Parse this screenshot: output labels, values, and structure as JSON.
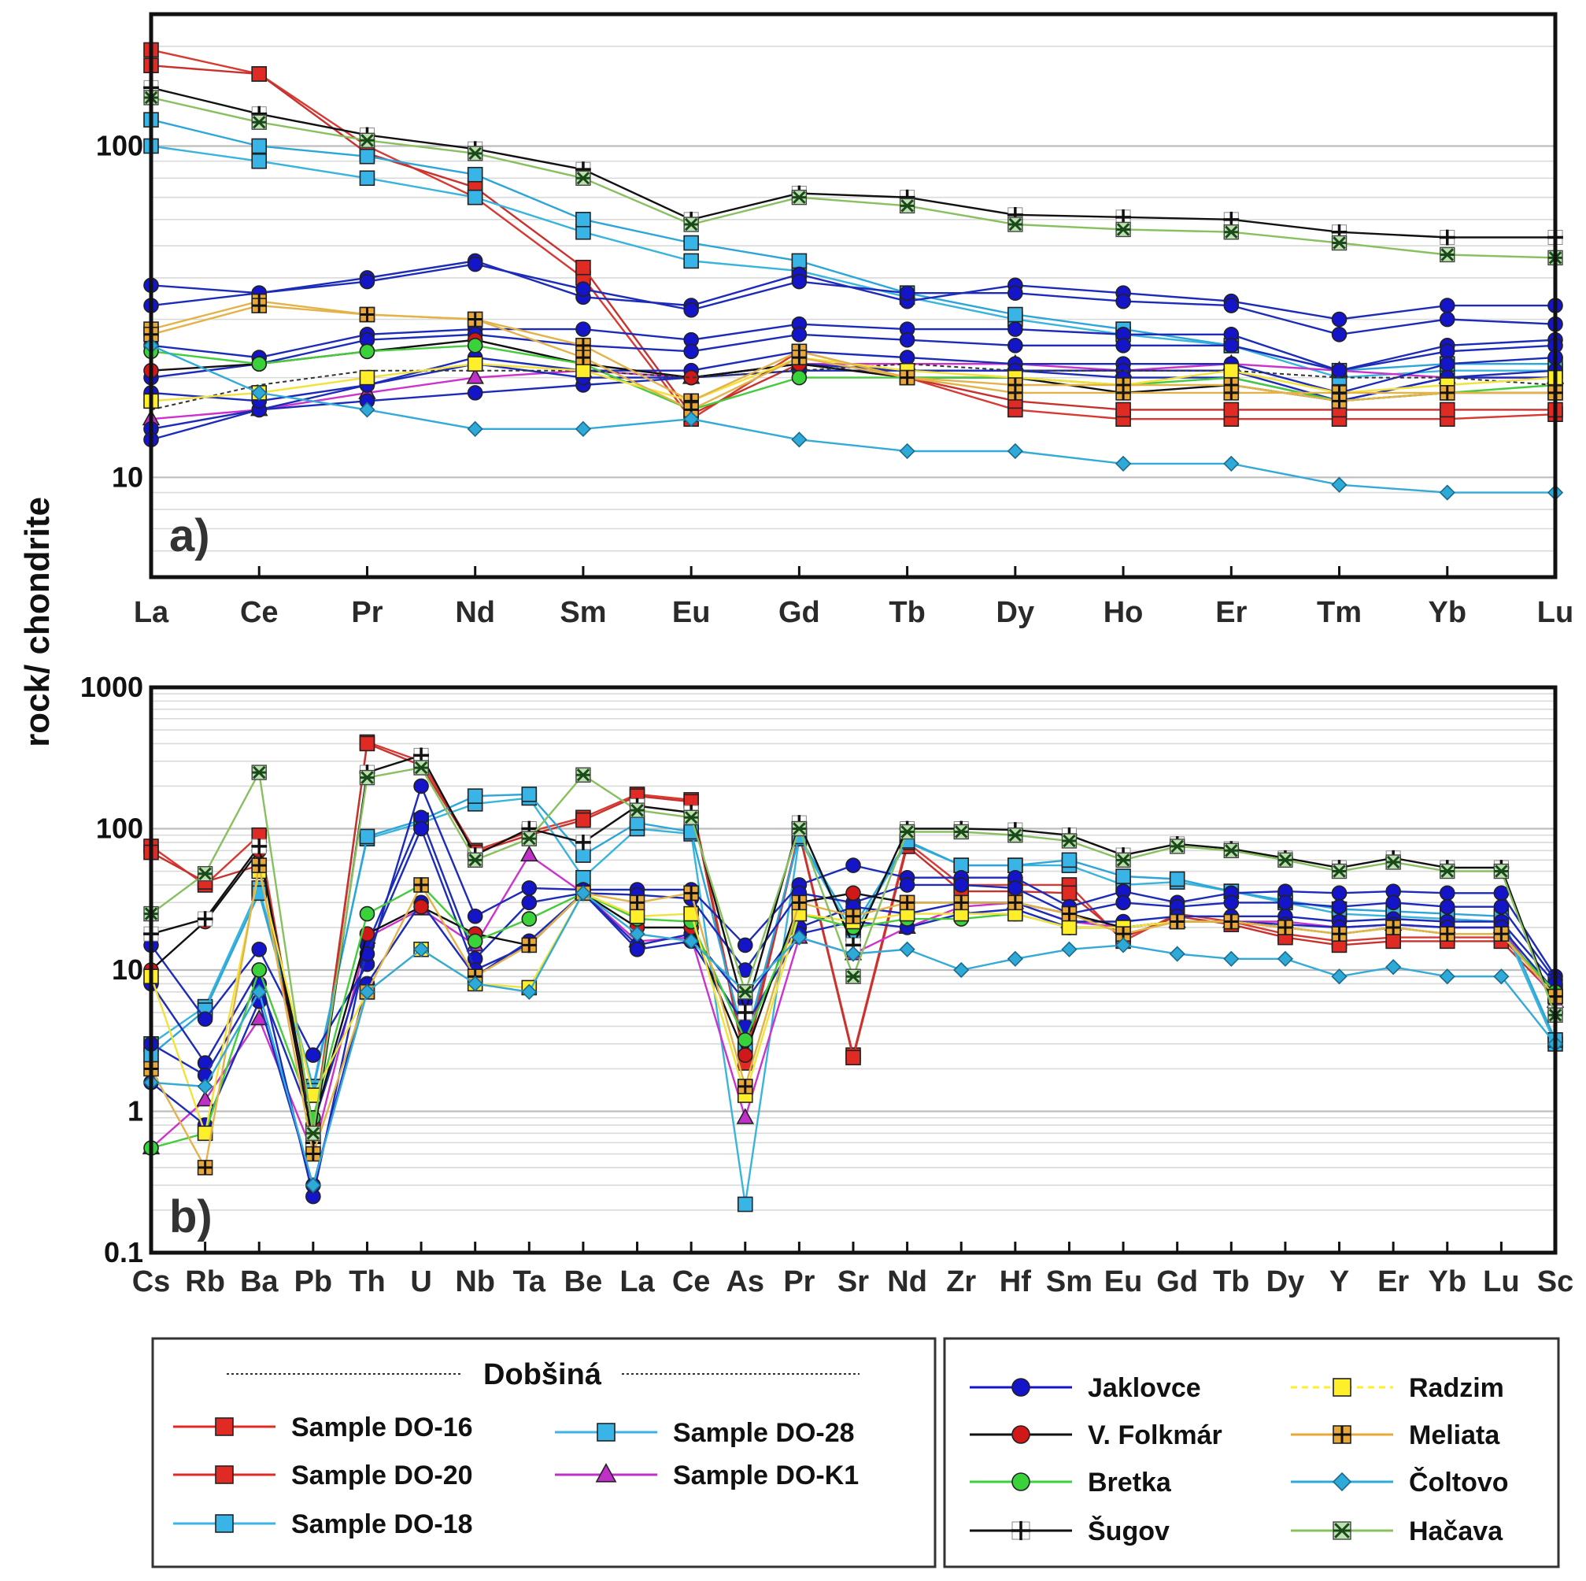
{
  "y_axis_label": "rock/ chondrite",
  "colors": {
    "Sample DO-16": "#d63a33",
    "Sample DO-20": "#c8322e",
    "Sample DO-18": "#39b4dc",
    "Sample DO-28": "#2ca6d8",
    "Sample DO-K1": "#cc33cc",
    "Jaklovce": "#1c2bb8",
    "V. Folkmár": "#111111",
    "Bretka": "#44cc3c",
    "Šugov": "#111111",
    "Radzim": "#f2e23a",
    "Meliata": "#e3b34a",
    "Čoltovo": "#33aad8",
    "Hačava": "#88c060"
  },
  "legend": {
    "group_title": "Dobšiná",
    "left": [
      {
        "label": "Sample DO-16",
        "marker": "square",
        "color": "#e02b25"
      },
      {
        "label": "Sample DO-20",
        "marker": "square",
        "color": "#e02b25"
      },
      {
        "label": "Sample DO-18",
        "marker": "square",
        "color": "#39b4e6"
      },
      {
        "label": "Sample DO-28",
        "marker": "square",
        "color": "#39b4e6"
      },
      {
        "label": "Sample DO-K1",
        "marker": "triangle",
        "color": "#c030c8"
      }
    ],
    "right": [
      {
        "label": "Jaklovce",
        "marker": "circle",
        "color": "#1414c8"
      },
      {
        "label": "V. Folkmár",
        "marker": "circle",
        "color": "#d01818"
      },
      {
        "label": "Bretka",
        "marker": "circle",
        "color": "#3ad23a"
      },
      {
        "label": "Šugov",
        "marker": "plus",
        "color": "#111111"
      },
      {
        "label": "Radzim",
        "marker": "square",
        "color": "#ffee2a"
      },
      {
        "label": "Meliata",
        "marker": "boxplus",
        "color": "#e8a838"
      },
      {
        "label": "Čoltovo",
        "marker": "diamond",
        "color": "#2eaad8"
      },
      {
        "label": "Hačava",
        "marker": "boxx",
        "color": "#2f8a2f"
      }
    ]
  },
  "chart_data": [
    {
      "type": "line",
      "panel": "a)",
      "yscale": "log",
      "ylim": [
        5,
        250
      ],
      "ytick_labels": [
        "10",
        "100"
      ],
      "categories": [
        "La",
        "Ce",
        "Pr",
        "Nd",
        "Sm",
        "Eu",
        "Gd",
        "Tb",
        "Dy",
        "Ho",
        "Er",
        "Tm",
        "Yb",
        "Lu"
      ],
      "series": [
        {
          "name": "Sample DO-16",
          "values": [
            195,
            165,
            100,
            70,
            40,
            15,
            24,
            20,
            16,
            15,
            15,
            15,
            15,
            15.5
          ]
        },
        {
          "name": "Sample DO-20",
          "values": [
            175,
            165,
            95,
            75,
            43,
            15.5,
            22,
            20,
            17,
            16,
            16,
            16,
            16,
            16
          ]
        },
        {
          "name": "Sample DO-18",
          "values": [
            100,
            90,
            80,
            70,
            55,
            45,
            42,
            35,
            30,
            27,
            25,
            20,
            21,
            21
          ]
        },
        {
          "name": "Sample DO-28",
          "values": [
            120,
            100,
            93,
            82,
            60,
            51,
            45,
            36,
            31,
            28,
            25,
            21,
            22,
            22
          ]
        },
        {
          "name": "Sample DO-K1",
          "values": [
            15,
            16,
            18,
            20,
            21,
            20,
            22,
            22,
            22,
            21,
            22,
            21,
            20,
            20
          ]
        },
        {
          "name": "Jaklovce",
          "values": [
            38,
            36,
            40,
            45,
            35,
            33,
            41,
            34,
            38,
            36,
            34,
            30,
            33,
            33
          ]
        },
        {
          "name": "Jaklovce",
          "values": [
            33,
            36,
            39,
            44,
            37,
            32,
            39,
            36,
            36,
            34,
            33,
            27,
            30,
            29
          ]
        },
        {
          "name": "Jaklovce",
          "values": [
            25,
            23,
            27,
            28,
            28,
            26,
            29,
            28,
            28,
            27,
            27,
            21,
            25,
            26
          ]
        },
        {
          "name": "Jaklovce",
          "values": [
            20,
            22,
            26,
            27,
            25,
            24,
            27,
            26,
            25,
            25,
            25,
            21,
            24,
            25
          ]
        },
        {
          "name": "Jaklovce",
          "values": [
            14,
            16,
            19,
            23,
            21,
            21,
            24,
            23,
            22,
            22,
            22,
            18,
            22,
            23
          ]
        },
        {
          "name": "Jaklovce",
          "values": [
            13,
            16,
            17,
            18,
            19,
            20,
            21,
            21,
            21,
            21,
            21,
            17,
            20,
            21
          ]
        },
        {
          "name": "Jaklovce",
          "values": [
            18,
            17,
            19,
            22,
            20,
            20,
            22,
            21,
            21,
            20,
            20,
            17,
            20,
            20
          ]
        },
        {
          "name": "V. Folkmár",
          "values": [
            21,
            22,
            24,
            26,
            22,
            20,
            22,
            20,
            20,
            18,
            19,
            17,
            18,
            18
          ]
        },
        {
          "name": "Bretka",
          "values": [
            24,
            22,
            24,
            25,
            22,
            16,
            20,
            20,
            20,
            19,
            20,
            17,
            18,
            19
          ]
        },
        {
          "name": "Šugov",
          "values": [
            150,
            125,
            108,
            98,
            85,
            60,
            72,
            70,
            62,
            61,
            60,
            55,
            53,
            53
          ]
        },
        {
          "name": "Dobšiná avg",
          "values": [
            16,
            19,
            21,
            21,
            21,
            20,
            21,
            22,
            21,
            21,
            21,
            20,
            20,
            19
          ]
        },
        {
          "name": "Radzim",
          "values": [
            17,
            18,
            20,
            22,
            21,
            17,
            23,
            21,
            20,
            19,
            21,
            18,
            19,
            20
          ]
        },
        {
          "name": "Meliata",
          "values": [
            28,
            34,
            31,
            30,
            25,
            17,
            24,
            20,
            18,
            18,
            18,
            18,
            18,
            18
          ]
        },
        {
          "name": "Meliata",
          "values": [
            27,
            33,
            31,
            30,
            23,
            16,
            23,
            20,
            19,
            19,
            19,
            17,
            18,
            18
          ]
        },
        {
          "name": "Čoltovo",
          "values": [
            25,
            18,
            16,
            14,
            14,
            15,
            13,
            12,
            12,
            11,
            11,
            9.5,
            9,
            9
          ]
        },
        {
          "name": "Hačava",
          "values": [
            140,
            118,
            104,
            95,
            80,
            58,
            70,
            66,
            58,
            56,
            55,
            51,
            47,
            46
          ]
        }
      ]
    },
    {
      "type": "line",
      "panel": "b)",
      "yscale": "log",
      "ylim": [
        0.1,
        1000
      ],
      "ytick_labels": [
        "0.1",
        "1",
        "10",
        "100",
        "1000"
      ],
      "categories": [
        "Cs",
        "Rb",
        "Ba",
        "Pb",
        "Th",
        "U",
        "Nb",
        "Ta",
        "Be",
        "La",
        "Ce",
        "As",
        "Pr",
        "Sr",
        "Nd",
        "Zr",
        "Hf",
        "Sm",
        "Eu",
        "Gd",
        "Tb",
        "Dy",
        "Y",
        "Er",
        "Yb",
        "Lu",
        "Sc"
      ],
      "series": [
        {
          "name": "Sample DO-16",
          "values": [
            75,
            40,
            90,
            0.6,
            410,
            300,
            70,
            95,
            120,
            175,
            160,
            2.5,
            95,
            2.5,
            80,
            40,
            40,
            40,
            16,
            25,
            22,
            18,
            16,
            17,
            17,
            17,
            7
          ]
        },
        {
          "name": "Sample DO-20",
          "values": [
            68,
            42,
            55,
            0.7,
            400,
            280,
            68,
            90,
            115,
            170,
            155,
            2.2,
            92,
            2.4,
            75,
            36,
            36,
            35,
            17,
            24,
            21,
            17,
            15,
            16,
            16,
            16,
            6.5
          ]
        },
        {
          "name": "Sample DO-18",
          "values": [
            3,
            5.5,
            38,
            1.5,
            85,
            110,
            150,
            165,
            45,
            100,
            92,
            0.22,
            85,
            18,
            80,
            55,
            55,
            55,
            40,
            42,
            36,
            30,
            25,
            24,
            23,
            22,
            3
          ]
        },
        {
          "name": "Sample DO-28",
          "values": [
            2.5,
            5.2,
            35,
            1.4,
            88,
            115,
            170,
            175,
            65,
            110,
            95,
            3,
            88,
            20,
            82,
            55,
            55,
            60,
            46,
            44,
            36,
            31,
            27,
            26,
            25,
            24,
            3.2
          ]
        },
        {
          "name": "Sample DO-K1",
          "values": [
            0.55,
            1.2,
            4.5,
            0.5,
            17,
            27,
            15,
            65,
            35,
            16,
            17,
            0.9,
            17,
            13,
            20,
            28,
            30,
            22,
            20,
            22,
            22,
            22,
            20,
            21,
            20,
            20,
            6
          ]
        },
        {
          "name": "Jaklovce",
          "values": [
            15,
            4.5,
            14,
            2.5,
            11,
            200,
            24,
            38,
            37,
            37,
            37,
            15,
            40,
            55,
            45,
            45,
            45,
            28,
            36,
            30,
            35,
            36,
            35,
            36,
            35,
            35,
            9
          ]
        },
        {
          "name": "Jaklovce",
          "values": [
            8,
            2.2,
            10,
            0.25,
            15,
            120,
            12,
            30,
            35,
            34,
            32,
            10,
            35,
            30,
            40,
            40,
            38,
            25,
            30,
            28,
            30,
            30,
            28,
            30,
            28,
            28,
            8.5
          ]
        },
        {
          "name": "Jaklovce",
          "values": [
            3,
            1.8,
            8,
            0.8,
            13,
            100,
            10,
            15,
            35,
            15,
            18,
            6,
            20,
            28,
            25,
            30,
            30,
            22,
            22,
            24,
            24,
            24,
            22,
            23,
            22,
            22,
            8
          ]
        },
        {
          "name": "Jaklovce",
          "values": [
            1.6,
            0.8,
            6,
            0.3,
            8,
            30,
            9,
            16,
            35,
            14,
            16,
            4,
            18,
            22,
            20,
            25,
            27,
            20,
            20,
            22,
            22,
            21,
            20,
            21,
            20,
            20,
            7
          ]
        },
        {
          "name": "V. Folkmár",
          "values": [
            10,
            22,
            70,
            0.8,
            18,
            28,
            18,
            15,
            35,
            20,
            20,
            2.5,
            30,
            35,
            30,
            30,
            30,
            25,
            20,
            22,
            22,
            20,
            18,
            20,
            18,
            18,
            7
          ]
        },
        {
          "name": "Bretka",
          "values": [
            0.55,
            0.7,
            10,
            0.9,
            25,
            40,
            16,
            23,
            35,
            23,
            22,
            3.2,
            25,
            20,
            23,
            23,
            25,
            20,
            20,
            22,
            22,
            20,
            18,
            20,
            18,
            18,
            7
          ]
        },
        {
          "name": "Šugov",
          "values": [
            18,
            23,
            75,
            0.6,
            250,
            330,
            65,
            100,
            80,
            145,
            130,
            5,
            110,
            15,
            100,
            100,
            98,
            90,
            65,
            78,
            72,
            62,
            53,
            62,
            53,
            53,
            5
          ]
        },
        {
          "name": "Radzim",
          "values": [
            9,
            0.7,
            50,
            1.3,
            7,
            14,
            8,
            7.5,
            35,
            24,
            25,
            1.3,
            25,
            22,
            25,
            25,
            25,
            20,
            20,
            22,
            22,
            20,
            18,
            20,
            18,
            18,
            6.5
          ]
        },
        {
          "name": "Meliata",
          "values": [
            2,
            0.4,
            55,
            0.5,
            7,
            40,
            9,
            15,
            35,
            30,
            35,
            1.5,
            30,
            24,
            30,
            30,
            30,
            25,
            18,
            22,
            22,
            20,
            18,
            20,
            18,
            18,
            6.5
          ]
        },
        {
          "name": "Čoltovo",
          "values": [
            1.6,
            1.5,
            7,
            0.3,
            7,
            14,
            8,
            7,
            35,
            18,
            16,
            7,
            17,
            13,
            14,
            10,
            12,
            14,
            15,
            13,
            12,
            12,
            9,
            10.5,
            9,
            9,
            3
          ]
        },
        {
          "name": "Hačava",
          "values": [
            25,
            48,
            250,
            0.7,
            230,
            270,
            60,
            85,
            240,
            135,
            120,
            7,
            100,
            9,
            95,
            95,
            90,
            82,
            60,
            75,
            70,
            60,
            50,
            58,
            50,
            50,
            4.8
          ]
        }
      ]
    }
  ]
}
